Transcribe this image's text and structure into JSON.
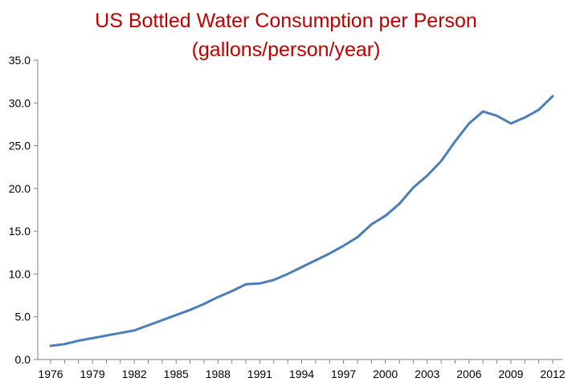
{
  "colors": {
    "title": "#c00000",
    "series": "#4a7ebb",
    "axis": "#7f7f7f",
    "text": "#000000"
  },
  "chart_data": {
    "type": "line",
    "title": [
      "US Bottled Water Consumption per Person",
      "(gallons/person/year)"
    ],
    "xlabel": "",
    "ylabel": "",
    "grid": false,
    "legend": "none",
    "x": [
      1976,
      1977,
      1978,
      1979,
      1980,
      1981,
      1982,
      1983,
      1984,
      1985,
      1986,
      1987,
      1988,
      1989,
      1990,
      1991,
      1992,
      1993,
      1994,
      1995,
      1996,
      1997,
      1998,
      1999,
      2000,
      2001,
      2002,
      2003,
      2004,
      2005,
      2006,
      2007,
      2008,
      2009,
      2010,
      2011,
      2012
    ],
    "series": [
      {
        "values": [
          1.6,
          1.8,
          2.2,
          2.5,
          2.8,
          3.1,
          3.4,
          4.0,
          4.6,
          5.2,
          5.8,
          6.5,
          7.3,
          8.0,
          8.8,
          8.9,
          9.3,
          10.0,
          10.8,
          11.6,
          12.4,
          13.3,
          14.3,
          15.8,
          16.8,
          18.2,
          20.1,
          21.5,
          23.2,
          25.5,
          27.6,
          29.0,
          28.5,
          27.6,
          28.3,
          29.2,
          30.8
        ]
      }
    ],
    "xticks": [
      "1976",
      "1979",
      "1982",
      "1985",
      "1988",
      "1991",
      "1994",
      "1997",
      "2000",
      "2003",
      "2006",
      "2009",
      "2012"
    ],
    "yticks": [
      "0.0",
      "5.0",
      "10.0",
      "15.0",
      "20.0",
      "25.0",
      "30.0",
      "35.0"
    ],
    "ylim": [
      0,
      35
    ],
    "xlim": [
      1976,
      2012
    ]
  }
}
